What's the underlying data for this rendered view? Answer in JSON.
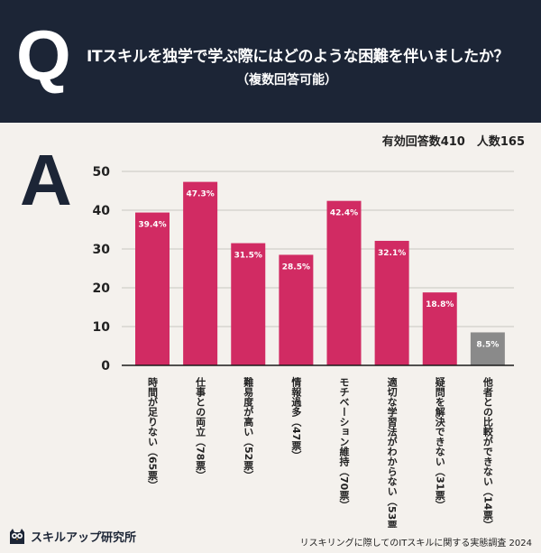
{
  "header": {
    "q_letter": "Q",
    "question": "ITスキルを独学で学ぶ際にはどのような困難を伴いましたか？",
    "question_sub": "（複数回答可能）"
  },
  "answer_letter": "A",
  "stats": "有効回答数410　人数165",
  "chart_data": {
    "type": "bar",
    "categories": [
      "時間が足りない（65票）",
      "仕事との両立（78票）",
      "難易度が高い（52票）",
      "情報過多（47票）",
      "モチベーション維持（70票）",
      "適切な学習法がわからない（53票）",
      "疑問を解決できない（31票）",
      "他者との比較ができない（14票）"
    ],
    "values": [
      39.4,
      47.3,
      31.5,
      28.5,
      42.4,
      32.1,
      18.8,
      8.5
    ],
    "data_labels": [
      "39.4%",
      "47.3%",
      "31.5%",
      "28.5%",
      "42.4%",
      "32.1%",
      "18.8%",
      "8.5%"
    ],
    "yticks": [
      "0",
      "10",
      "20",
      "30",
      "40",
      "50"
    ],
    "ylim": [
      0,
      50
    ],
    "grid": true,
    "colors": {
      "bar": "#d12b63",
      "bar_muted": "#8a8a8a",
      "grid": "#c9c6c1",
      "axis": "#1a1a1a"
    }
  },
  "footer": {
    "logo_text": "スキルアップ研究所",
    "logo_icon": "owl-icon",
    "source": "リスキリングに際してのITスキルに関する実態調査 2024"
  }
}
